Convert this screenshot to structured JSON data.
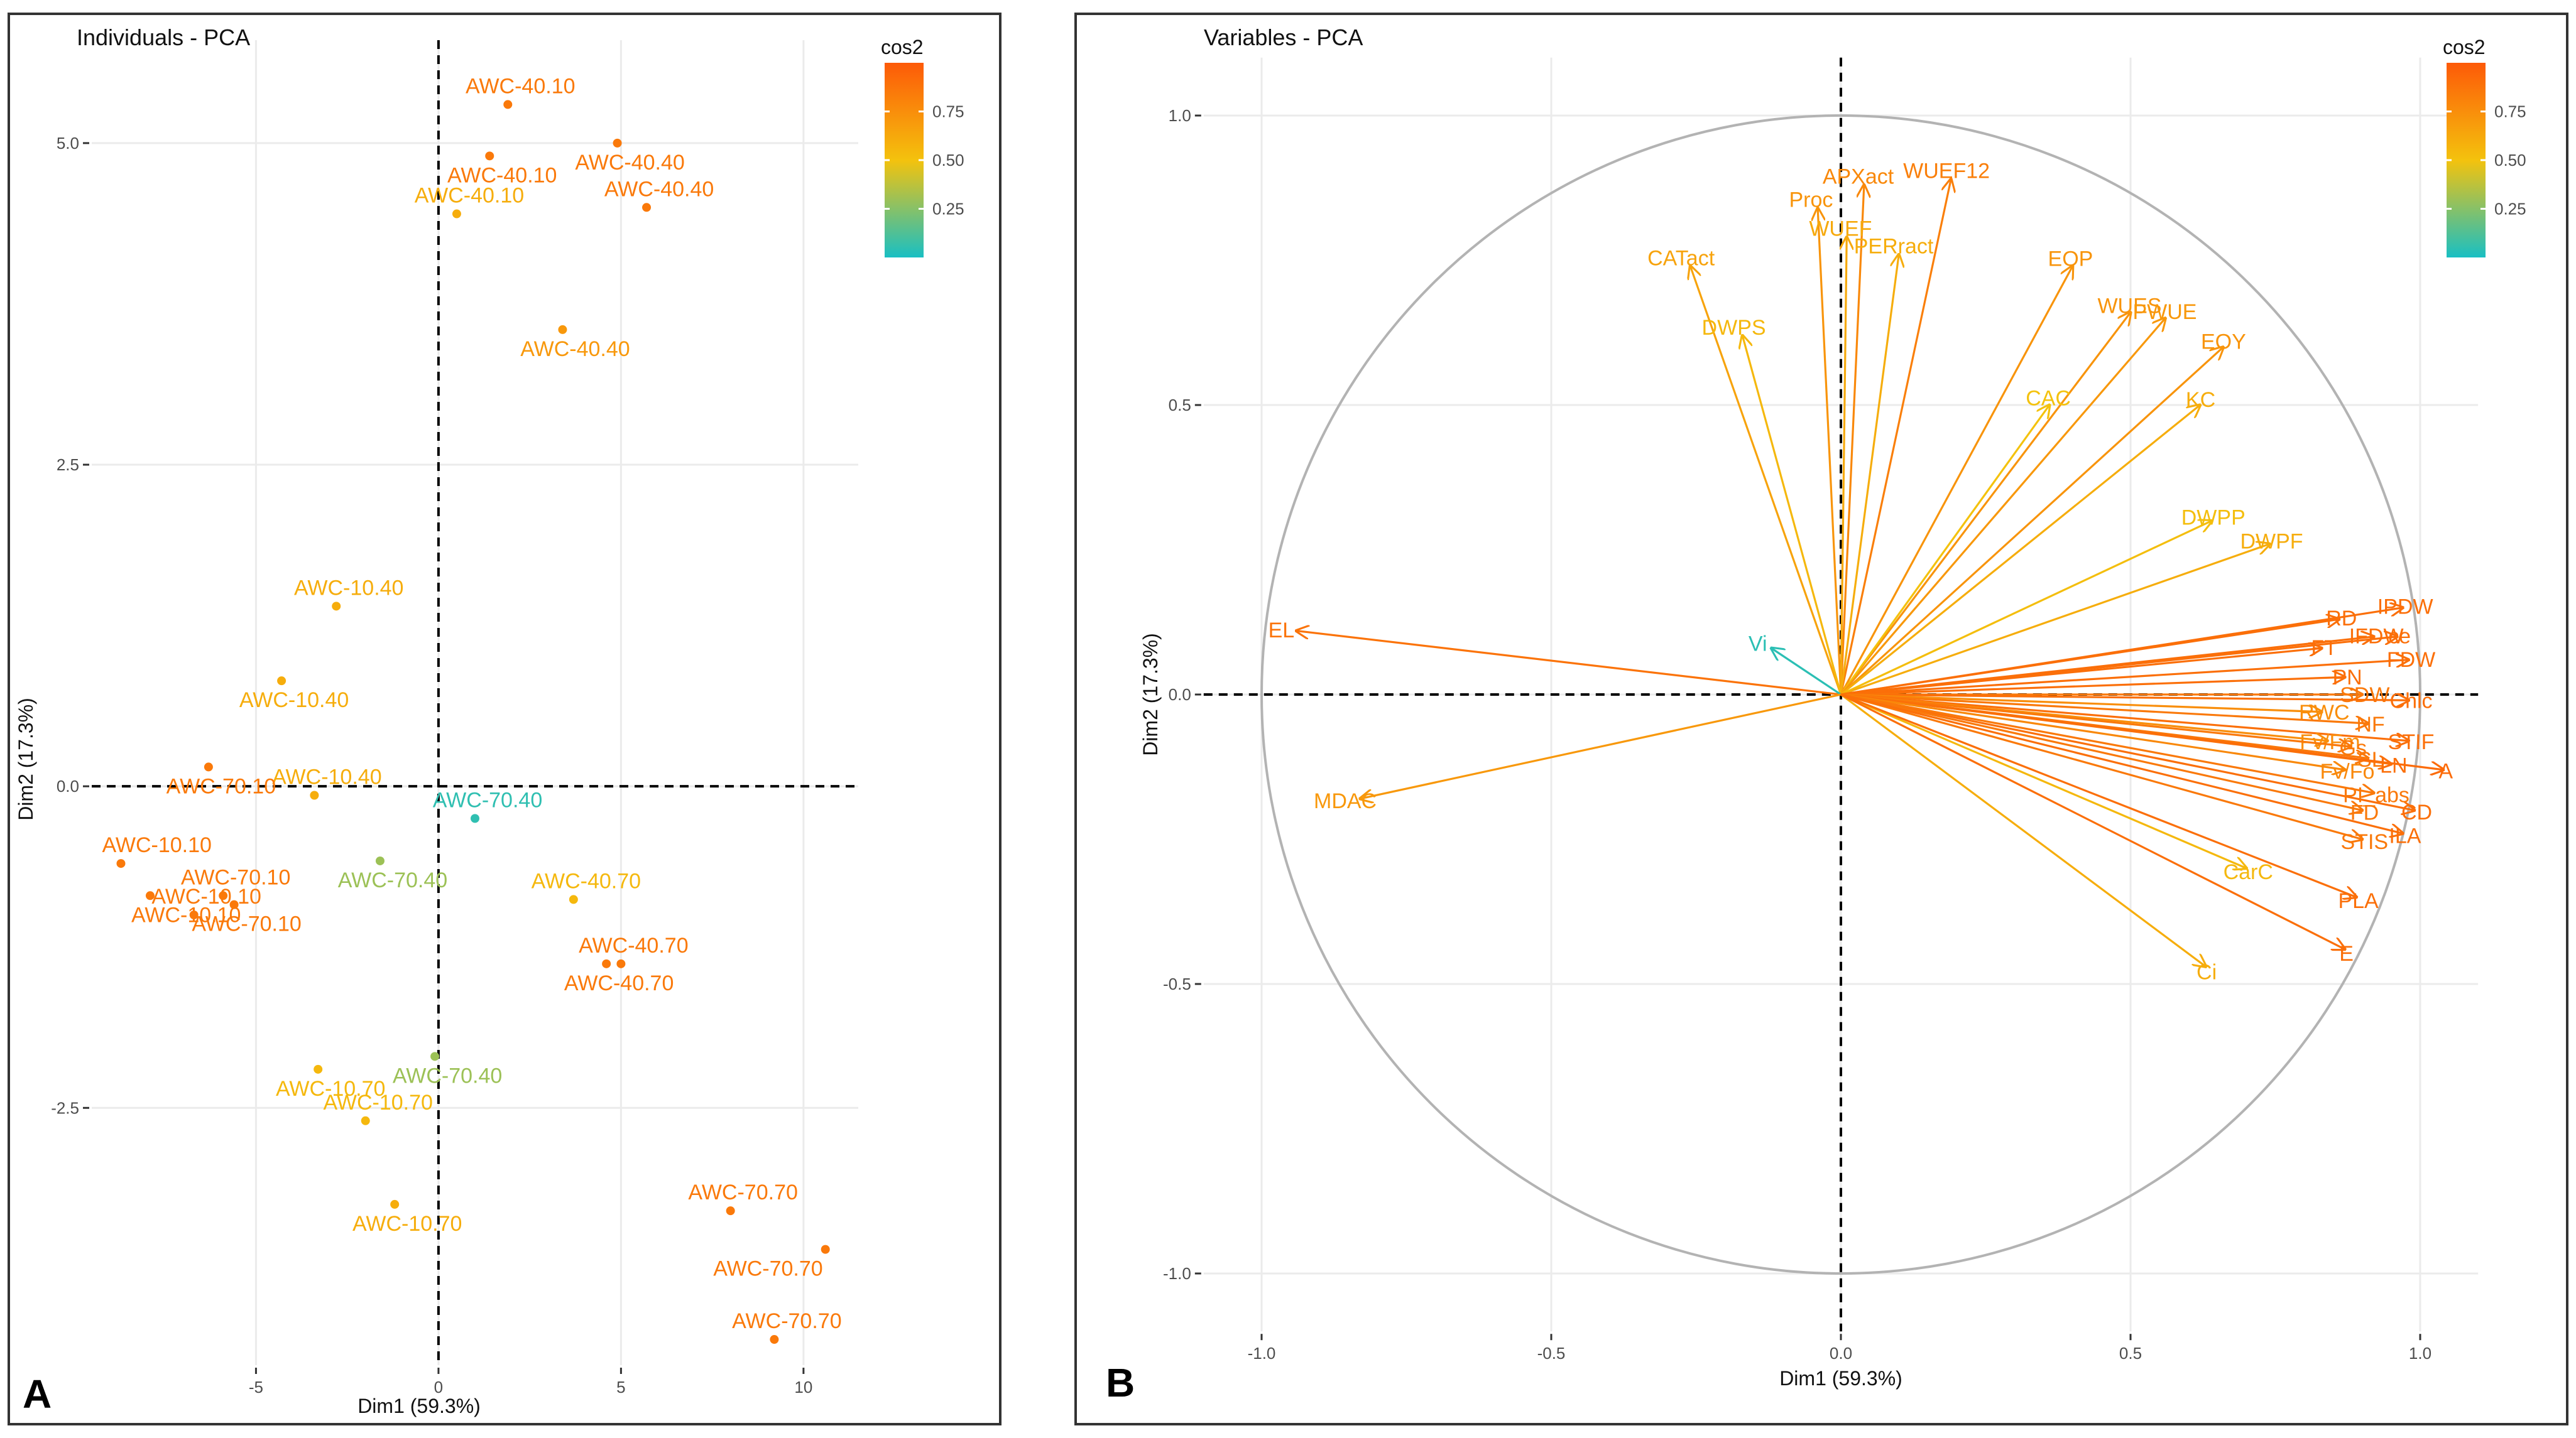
{
  "colors": {
    "low": "#19bfc3",
    "mid": "#f4c20d",
    "high": "#fd5a08"
  },
  "chart_data": [
    {
      "type": "scatter",
      "panel_label": "A",
      "title": "Individuals - PCA",
      "xlabel": "Dim1  (59.3%)",
      "ylabel": "Dim2  (17.3%)",
      "xlim": [
        -9.5,
        11.5
      ],
      "ylim": [
        -4.5,
        5.8
      ],
      "xticks": [
        -5,
        0,
        5,
        10
      ],
      "xtick_labels": [
        "-5",
        "0",
        "5",
        "10"
      ],
      "yticks": [
        -2.5,
        0,
        2.5,
        5
      ],
      "ytick_labels": [
        "-2.5",
        "0.0",
        "2.5",
        "5.0"
      ],
      "legend": {
        "title": "cos2",
        "ticks": [
          0.25,
          0.5,
          0.75
        ],
        "tick_labels": [
          "0.25",
          "0.50",
          "0.75"
        ]
      },
      "points": [
        {
          "label": "AWC-40.10",
          "x": 1.9,
          "y": 5.3,
          "cos2": 0.85
        },
        {
          "label": "AWC-40.10",
          "x": 1.4,
          "y": 4.9,
          "cos2": 0.85
        },
        {
          "label": "AWC-40.10",
          "x": 0.5,
          "y": 4.45,
          "cos2": 0.6
        },
        {
          "label": "AWC-40.40",
          "x": 4.9,
          "y": 5.0,
          "cos2": 0.85
        },
        {
          "label": "AWC-40.40",
          "x": 5.7,
          "y": 4.5,
          "cos2": 0.85
        },
        {
          "label": "AWC-40.40",
          "x": 3.4,
          "y": 3.55,
          "cos2": 0.7
        },
        {
          "label": "AWC-10.40",
          "x": -2.8,
          "y": 1.4,
          "cos2": 0.6
        },
        {
          "label": "AWC-10.40",
          "x": -4.3,
          "y": 0.82,
          "cos2": 0.6
        },
        {
          "label": "AWC-10.40",
          "x": -3.4,
          "y": -0.07,
          "cos2": 0.6
        },
        {
          "label": "AWC-70.10",
          "x": -6.3,
          "y": 0.15,
          "cos2": 0.85
        },
        {
          "label": "AWC-70.10",
          "x": -5.9,
          "y": -0.85,
          "cos2": 0.85
        },
        {
          "label": "AWC-70.10",
          "x": -5.6,
          "y": -0.92,
          "cos2": 0.85
        },
        {
          "label": "AWC-10.10",
          "x": -8.7,
          "y": -0.6,
          "cos2": 0.85
        },
        {
          "label": "AWC-10.10",
          "x": -7.9,
          "y": -0.85,
          "cos2": 0.85
        },
        {
          "label": "AWC-10.10",
          "x": -6.7,
          "y": -1.0,
          "cos2": 0.85
        },
        {
          "label": "AWC-70.40",
          "x": -1.6,
          "y": -0.58,
          "cos2": 0.3
        },
        {
          "label": "AWC-70.40",
          "x": 1.0,
          "y": -0.25,
          "cos2": 0.05
        },
        {
          "label": "AWC-70.40",
          "x": -0.1,
          "y": -2.1,
          "cos2": 0.3
        },
        {
          "label": "AWC-40.70",
          "x": 3.7,
          "y": -0.88,
          "cos2": 0.55
        },
        {
          "label": "AWC-40.70",
          "x": 4.6,
          "y": -1.38,
          "cos2": 0.85
        },
        {
          "label": "AWC-40.70",
          "x": 5.0,
          "y": -1.38,
          "cos2": 0.85
        },
        {
          "label": "AWC-10.70",
          "x": -3.3,
          "y": -2.2,
          "cos2": 0.55
        },
        {
          "label": "AWC-10.70",
          "x": -2.0,
          "y": -2.6,
          "cos2": 0.55
        },
        {
          "label": "AWC-10.70",
          "x": -1.2,
          "y": -3.25,
          "cos2": 0.6
        },
        {
          "label": "AWC-70.70",
          "x": 8.0,
          "y": -3.3,
          "cos2": 0.85
        },
        {
          "label": "AWC-70.70",
          "x": 10.6,
          "y": -3.6,
          "cos2": 0.85
        },
        {
          "label": "AWC-70.70",
          "x": 9.2,
          "y": -4.3,
          "cos2": 0.85
        }
      ]
    },
    {
      "type": "scatter",
      "panel_label": "B",
      "title": "Variables - PCA",
      "xlabel": "Dim1  (59.3%)",
      "ylabel": "Dim2  (17.3%)",
      "xlim": [
        -1.1,
        1.1
      ],
      "ylim": [
        -1.1,
        1.1
      ],
      "xticks": [
        -1,
        -0.5,
        0,
        0.5,
        1
      ],
      "xtick_labels": [
        "-1.0",
        "-0.5",
        "0.0",
        "0.5",
        "1.0"
      ],
      "yticks": [
        -1,
        -0.5,
        0,
        0.5,
        1
      ],
      "ytick_labels": [
        "-1.0",
        "-0.5",
        "0.0",
        "0.5",
        "1.0"
      ],
      "legend": {
        "title": "cos2",
        "ticks": [
          0.25,
          0.5,
          0.75
        ],
        "tick_labels": [
          "0.25",
          "0.50",
          "0.75"
        ]
      },
      "variables": [
        {
          "label": "APXact",
          "x": 0.04,
          "y": 0.88,
          "cos2": 0.78
        },
        {
          "label": "WUEF12",
          "x": 0.19,
          "y": 0.89,
          "cos2": 0.82
        },
        {
          "label": "Proc",
          "x": -0.04,
          "y": 0.84,
          "cos2": 0.72
        },
        {
          "label": "WUEF",
          "x": 0.01,
          "y": 0.79,
          "cos2": 0.62
        },
        {
          "label": "PERract",
          "x": 0.1,
          "y": 0.76,
          "cos2": 0.6
        },
        {
          "label": "CATact",
          "x": -0.26,
          "y": 0.74,
          "cos2": 0.65
        },
        {
          "label": "DWPS",
          "x": -0.17,
          "y": 0.62,
          "cos2": 0.55
        },
        {
          "label": "EOP",
          "x": 0.4,
          "y": 0.74,
          "cos2": 0.72
        },
        {
          "label": "WUES",
          "x": 0.5,
          "y": 0.66,
          "cos2": 0.72
        },
        {
          "label": "CAC",
          "x": 0.36,
          "y": 0.5,
          "cos2": 0.5
        },
        {
          "label": "PWUE",
          "x": 0.56,
          "y": 0.65,
          "cos2": 0.7
        },
        {
          "label": "EOY",
          "x": 0.66,
          "y": 0.6,
          "cos2": 0.72
        },
        {
          "label": "KC",
          "x": 0.62,
          "y": 0.5,
          "cos2": 0.6
        },
        {
          "label": "DWPP",
          "x": 0.64,
          "y": 0.3,
          "cos2": 0.52
        },
        {
          "label": "DWPF",
          "x": 0.74,
          "y": 0.26,
          "cos2": 0.6
        },
        {
          "label": "EL",
          "x": -0.94,
          "y": 0.11,
          "cos2": 0.88
        },
        {
          "label": "Vi",
          "x": -0.12,
          "y": 0.08,
          "cos2": 0.04
        },
        {
          "label": "MDAC",
          "x": -0.83,
          "y": -0.18,
          "cos2": 0.7
        },
        {
          "label": "IPDW",
          "x": 0.97,
          "y": 0.15,
          "cos2": 0.9
        },
        {
          "label": "RD",
          "x": 0.86,
          "y": 0.13,
          "cos2": 0.9
        },
        {
          "label": "IFDW",
          "x": 0.92,
          "y": 0.1,
          "cos2": 0.9
        },
        {
          "label": "ce",
          "x": 0.96,
          "y": 0.1,
          "cos2": 0.9
        },
        {
          "label": "FT",
          "x": 0.83,
          "y": 0.08,
          "cos2": 0.9
        },
        {
          "label": "FDW",
          "x": 0.98,
          "y": 0.06,
          "cos2": 0.9
        },
        {
          "label": "PN",
          "x": 0.87,
          "y": 0.03,
          "cos2": 0.9
        },
        {
          "label": "SDW",
          "x": 0.9,
          "y": 0.0,
          "cos2": 0.85
        },
        {
          "label": "Chlc",
          "x": 0.98,
          "y": -0.01,
          "cos2": 0.9
        },
        {
          "label": "RWC",
          "x": 0.83,
          "y": -0.03,
          "cos2": 0.75
        },
        {
          "label": "NF",
          "x": 0.91,
          "y": -0.05,
          "cos2": 0.85
        },
        {
          "label": "STIF",
          "x": 0.98,
          "y": -0.08,
          "cos2": 0.9
        },
        {
          "label": "Fv/Fm",
          "x": 0.84,
          "y": -0.08,
          "cos2": 0.75
        },
        {
          "label": "Gs",
          "x": 0.88,
          "y": -0.09,
          "cos2": 0.85
        },
        {
          "label": "SL",
          "x": 0.91,
          "y": -0.11,
          "cos2": 0.85
        },
        {
          "label": "A",
          "x": 1.04,
          "y": -0.13,
          "cos2": 0.92
        },
        {
          "label": "LN",
          "x": 0.95,
          "y": -0.12,
          "cos2": 0.9
        },
        {
          "label": "Fv/Fo",
          "x": 0.87,
          "y": -0.13,
          "cos2": 0.78
        },
        {
          "label": "CD",
          "x": 0.99,
          "y": -0.2,
          "cos2": 0.9
        },
        {
          "label": "PI_abs",
          "x": 0.92,
          "y": -0.17,
          "cos2": 0.85
        },
        {
          "label": "FD",
          "x": 0.9,
          "y": -0.2,
          "cos2": 0.85
        },
        {
          "label": "STIS",
          "x": 0.9,
          "y": -0.25,
          "cos2": 0.85
        },
        {
          "label": "ILA",
          "x": 0.97,
          "y": -0.24,
          "cos2": 0.9
        },
        {
          "label": "CarC",
          "x": 0.7,
          "y": -0.3,
          "cos2": 0.55
        },
        {
          "label": "PLA",
          "x": 0.89,
          "y": -0.35,
          "cos2": 0.9
        },
        {
          "label": "Ci",
          "x": 0.63,
          "y": -0.47,
          "cos2": 0.6
        },
        {
          "label": "E",
          "x": 0.87,
          "y": -0.44,
          "cos2": 0.9
        }
      ]
    }
  ]
}
